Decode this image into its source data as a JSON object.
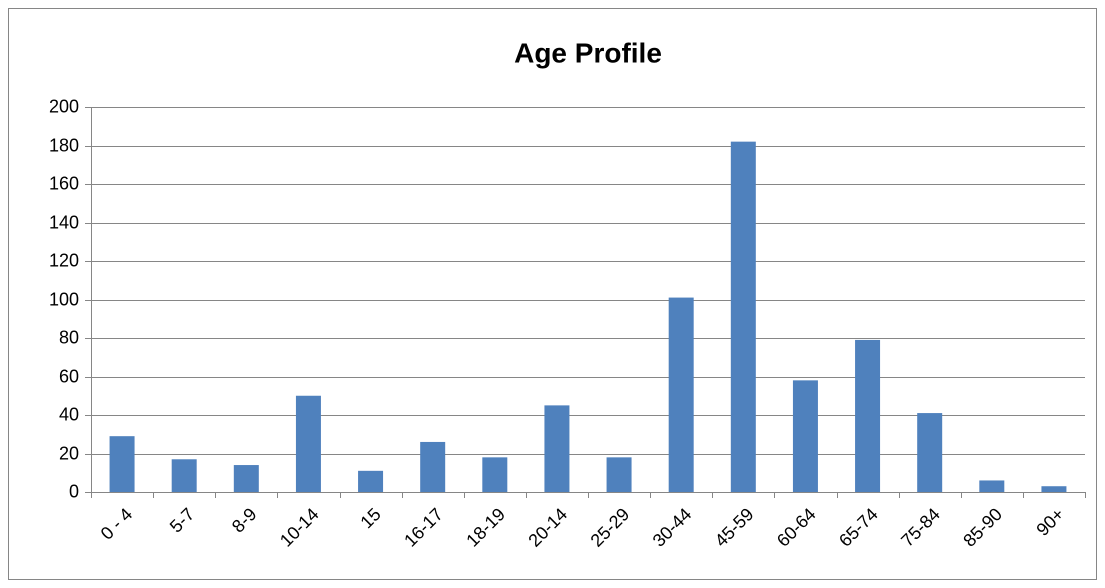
{
  "chart_data": {
    "type": "bar",
    "title": "Age Profile",
    "categories": [
      "0 - 4",
      "5-7",
      "8-9",
      "10-14",
      "15",
      "16-17",
      "18-19",
      "20-14",
      "25-29",
      "30-44",
      "45-59",
      "60-64",
      "65-74",
      "75-84",
      "85-90",
      "90+"
    ],
    "values": [
      29,
      17,
      14,
      50,
      11,
      26,
      18,
      45,
      18,
      101,
      182,
      58,
      79,
      41,
      6,
      3
    ],
    "color": "#4f81bd",
    "ylim": [
      0,
      200
    ],
    "yticks": [
      0,
      20,
      40,
      60,
      80,
      100,
      120,
      140,
      160,
      180,
      200
    ],
    "grid": true
  }
}
